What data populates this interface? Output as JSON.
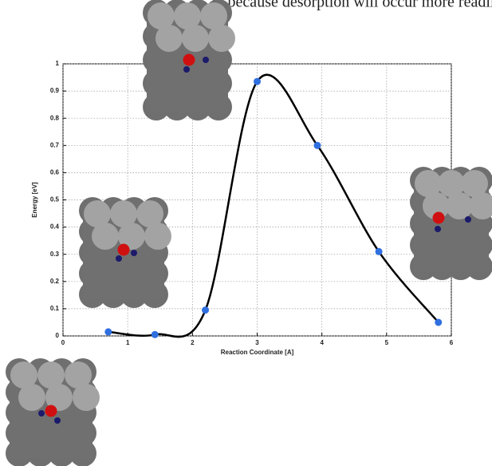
{
  "caption_fragment": "ly because desorption will occur more readily.",
  "chart_data": {
    "type": "line",
    "x_label": "Reaction Coordinate [A]",
    "y_label": "Energy [eV]",
    "xlim": [
      0,
      6
    ],
    "ylim": [
      0,
      1
    ],
    "xticks": [
      0,
      1,
      2,
      3,
      4,
      5,
      6
    ],
    "yticks": [
      0,
      0.1,
      0.2,
      0.3,
      0.4,
      0.5,
      0.6,
      0.7,
      0.8,
      0.9,
      1
    ],
    "grid": true,
    "series": [
      {
        "color": "#000000",
        "marker_color": "#2f6fe0",
        "x": [
          0.7,
          1.42,
          2.2,
          3.0,
          3.93,
          4.88,
          5.8
        ],
        "values": [
          0.015,
          0.005,
          0.095,
          0.935,
          0.7,
          0.31,
          0.05
        ]
      }
    ]
  }
}
